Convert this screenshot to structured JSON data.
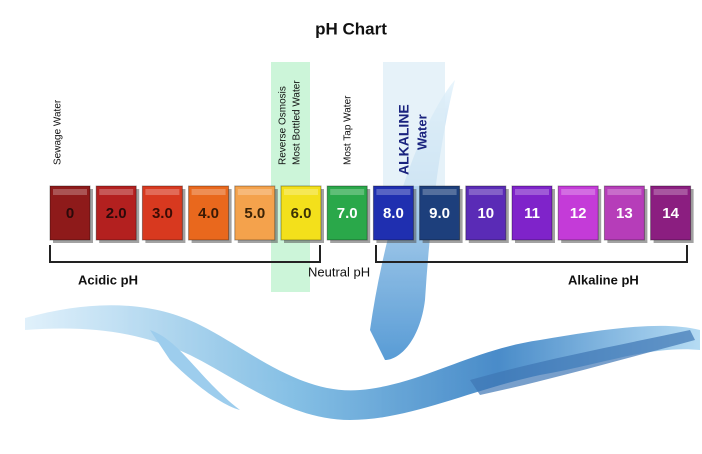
{
  "title": "pH Chart",
  "blocks": [
    {
      "label": "0",
      "color": "#8e1a1a",
      "text_color": "#2a0a0a"
    },
    {
      "label": "2.0",
      "color": "#b3201f",
      "text_color": "#2a0a0a"
    },
    {
      "label": "3.0",
      "color": "#d8391f",
      "text_color": "#3a0c05"
    },
    {
      "label": "4.0",
      "color": "#e9681d",
      "text_color": "#3a1a05"
    },
    {
      "label": "5.0",
      "color": "#f4a24c",
      "text_color": "#3a2205"
    },
    {
      "label": "6.0",
      "color": "#f3e01b",
      "text_color": "#3a3205"
    },
    {
      "label": "7.0",
      "color": "#2aa84a",
      "text_color": "#ffffff"
    },
    {
      "label": "8.0",
      "color": "#1f2fb0",
      "text_color": "#ffffff"
    },
    {
      "label": "9.0",
      "color": "#1d3f7c",
      "text_color": "#ffffff"
    },
    {
      "label": "10",
      "color": "#5a2bb6",
      "text_color": "#ffffff"
    },
    {
      "label": "11",
      "color": "#7f23ca",
      "text_color": "#ffffff"
    },
    {
      "label": "12",
      "color": "#c43bd8",
      "text_color": "#ffffff"
    },
    {
      "label": "13",
      "color": "#b63db9",
      "text_color": "#ffffff"
    },
    {
      "label": "14",
      "color": "#8b1e80",
      "text_color": "#ffffff"
    }
  ],
  "notes": [
    "Sewage Water",
    "Reverse Osmosis",
    "Most Bottled Water",
    "Most Tap Water",
    "ALKALINE",
    "Water"
  ],
  "ranges": [
    "Acidic pH",
    "Neutral pH",
    "Alkaline pH"
  ]
}
